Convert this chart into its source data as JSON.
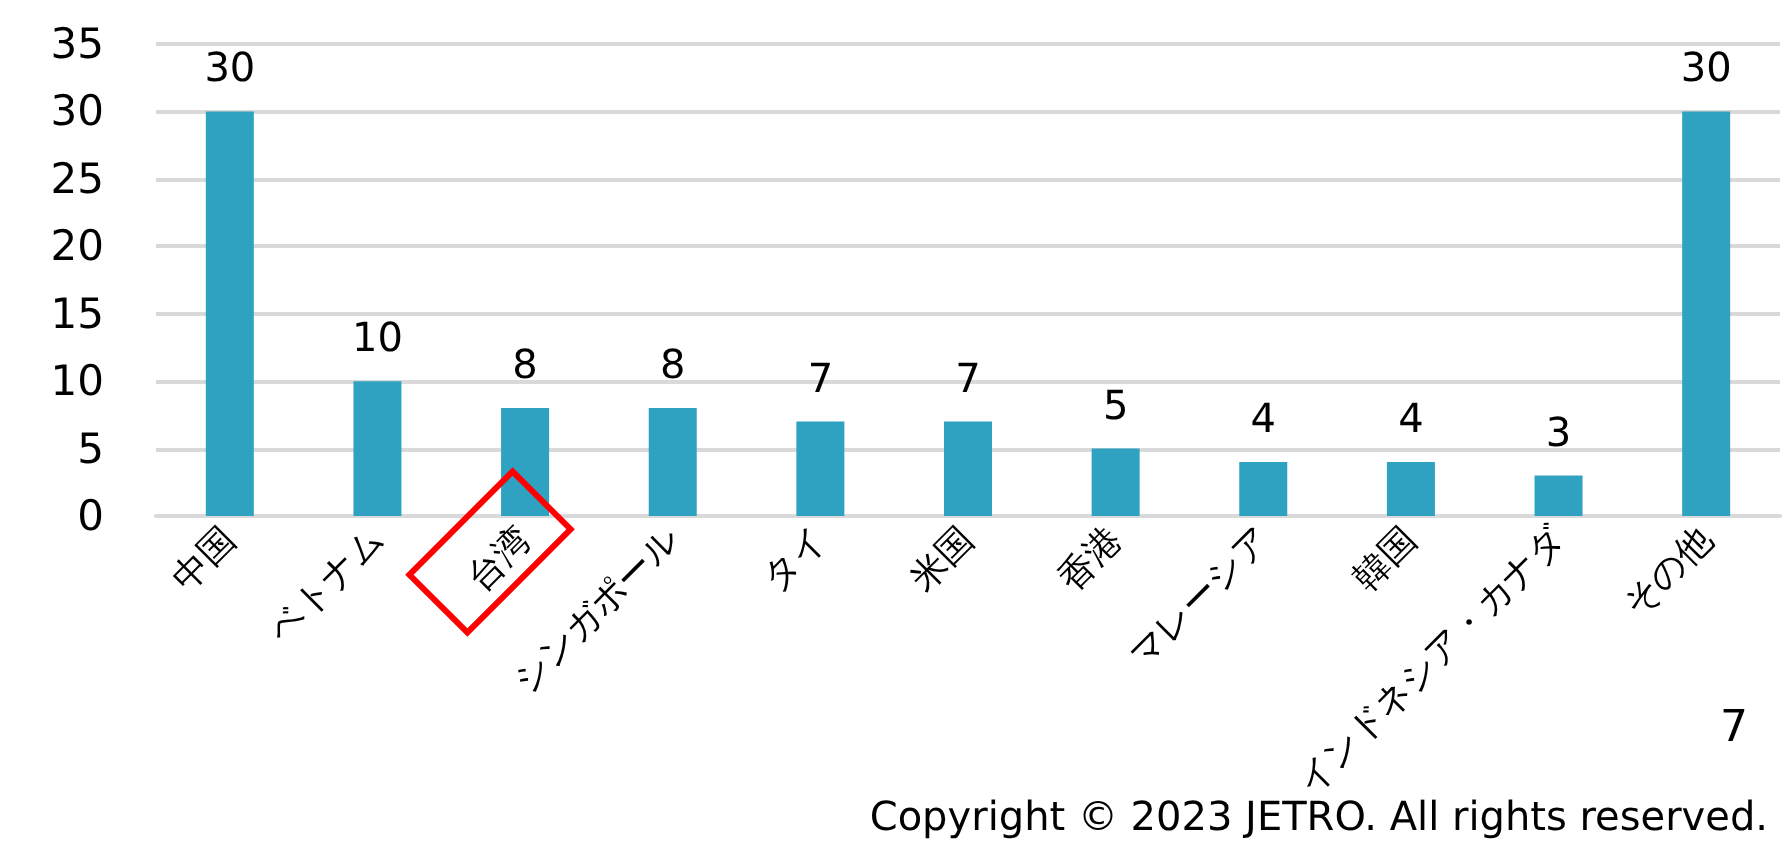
{
  "chart_data": {
    "type": "bar",
    "categories": [
      "中国",
      "ベトナム",
      "台湾",
      "シンガポール",
      "タイ",
      "米国",
      "香港",
      "マレーシア",
      "韓国",
      "インドネシア・カナダ",
      "その他"
    ],
    "values": [
      30,
      10,
      8,
      8,
      7,
      7,
      5,
      4,
      4,
      3,
      30
    ],
    "color": "#2ea2c0",
    "ylim": [
      0,
      35
    ],
    "yticks": [
      0,
      5,
      10,
      15,
      20,
      25,
      30,
      35
    ],
    "grid": "y",
    "data_labels": true,
    "annotations": [
      "Copyright © 2023 JETRO. All rights reserved.",
      "7"
    ]
  }
}
